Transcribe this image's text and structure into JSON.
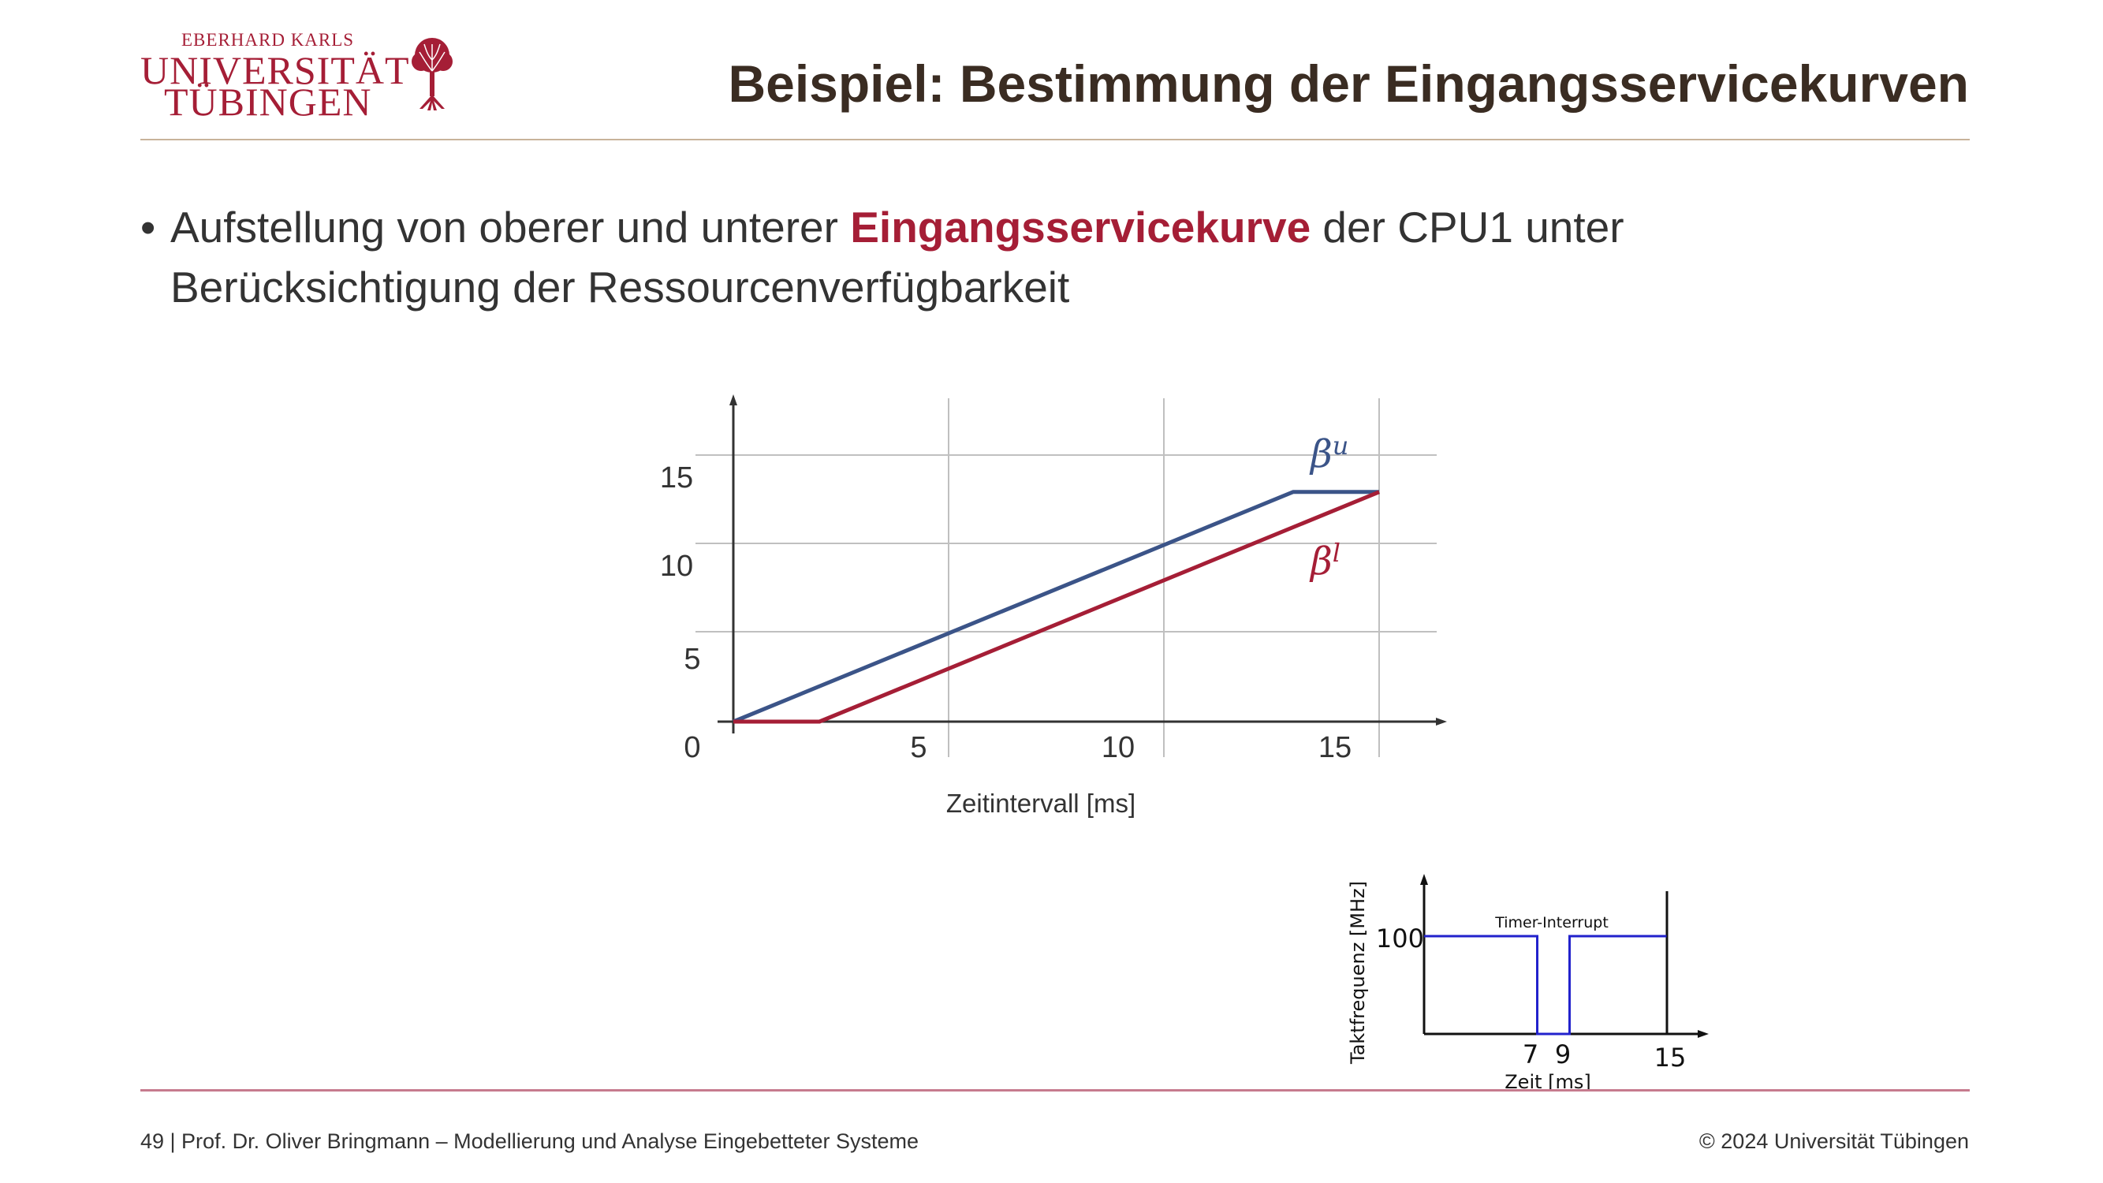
{
  "header": {
    "logo": {
      "line1": "EBERHARD KARLS",
      "line2": "UNIVERSITÄT",
      "line3": "TÜBINGEN",
      "color": "#a51e36"
    },
    "title_prefix": "Beispiel: ",
    "title_main": "Bestimmung der Eingangsservicekurven"
  },
  "bullet": {
    "symbol": "•",
    "text_before": "Aufstellung von oberer und unterer ",
    "highlight": "Eingangsservicekurve",
    "text_after": " der CPU1 unter Berücksichtigung der Ressourcenverfügbarkeit",
    "highlight_color": "#a51e36"
  },
  "main_chart": {
    "xlabel": "Zeitintervall [ms]",
    "x_ticks": [
      "5",
      "10",
      "15"
    ],
    "y_ticks": [
      "0",
      "5",
      "10",
      "15"
    ],
    "upper_label_base": "β",
    "upper_label_sup": "u",
    "lower_label_base": "β",
    "lower_label_sup": "l",
    "upper_color": "#3b5488",
    "lower_color": "#a51e36"
  },
  "small_chart": {
    "ylabel": "Taktfrequenz [MHz]",
    "xlabel": "Zeit [ms]",
    "y_tick": "100",
    "x_ticks": [
      "7",
      "9",
      "15"
    ],
    "annotation": "Timer-Interrupt",
    "line_color": "#2222cc"
  },
  "chart_data": [
    {
      "type": "line",
      "xlabel": "Zeitintervall [ms]",
      "ylabel": "",
      "xlim": [
        0,
        16.3
      ],
      "ylim": [
        0,
        18
      ],
      "x_ticks": [
        5,
        10,
        15
      ],
      "y_ticks": [
        0,
        5,
        10,
        15
      ],
      "grid": true,
      "series": [
        {
          "name": "β^u",
          "color": "#3b5488",
          "points": [
            [
              0,
              0
            ],
            [
              13,
              13
            ],
            [
              15,
              13
            ]
          ]
        },
        {
          "name": "β^l",
          "color": "#a51e36",
          "points": [
            [
              0,
              0
            ],
            [
              2,
              0
            ],
            [
              15,
              13
            ]
          ]
        }
      ]
    },
    {
      "type": "line",
      "xlabel": "Zeit [ms]",
      "ylabel": "Taktfrequenz [MHz]",
      "x_ticks": [
        7,
        9,
        15
      ],
      "y_ticks": [
        100
      ],
      "annotation": "Timer-Interrupt",
      "series": [
        {
          "color": "#2222cc",
          "points": [
            [
              0,
              100
            ],
            [
              7,
              100
            ],
            [
              7,
              0
            ],
            [
              9,
              0
            ],
            [
              9,
              100
            ],
            [
              15,
              100
            ]
          ]
        }
      ]
    }
  ],
  "footer": {
    "left": "49 | Prof. Dr. Oliver Bringmann – Modellierung und Analyse Eingebetteter Systeme",
    "right": "© 2024 Universität Tübingen"
  }
}
